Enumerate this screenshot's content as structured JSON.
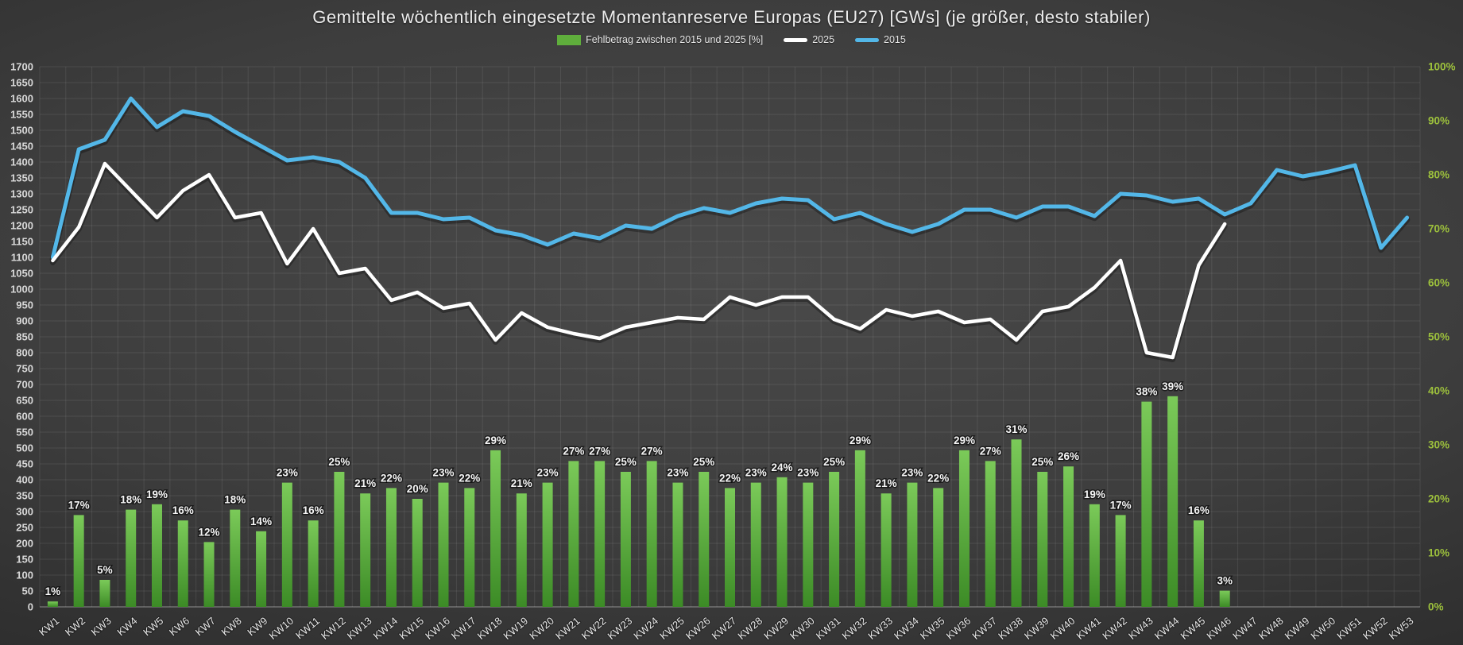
{
  "title": "Gemittelte wöchentlich eingesetzte Momentanreserve Europas (EU27) [GWs] (je größer, desto stabiler)",
  "legend": [
    {
      "label": "Fehlbetrag zwischen 2015 und 2025 [%]",
      "type": "bar",
      "color": "#5fae3c"
    },
    {
      "label": "2025",
      "type": "line",
      "color": "#ffffff"
    },
    {
      "label": "2015",
      "type": "line",
      "color": "#53b7e8"
    }
  ],
  "chart_data": {
    "type": "bar",
    "subtype": "combo-bar-line",
    "title": "Gemittelte wöchentlich eingesetzte Momentanreserve Europas (EU27) [GWs] (je größer, desto stabiler)",
    "grid": true,
    "legend_position": "top",
    "categories": [
      "KW1",
      "KW2",
      "KW3",
      "KW4",
      "KW5",
      "KW6",
      "KW7",
      "KW8",
      "KW9",
      "KW10",
      "KW11",
      "KW12",
      "KW13",
      "KW14",
      "KW15",
      "KW16",
      "KW17",
      "KW18",
      "KW19",
      "KW20",
      "KW21",
      "KW22",
      "KW23",
      "KW24",
      "KW25",
      "KW26",
      "KW27",
      "KW28",
      "KW29",
      "KW30",
      "KW31",
      "KW32",
      "KW33",
      "KW34",
      "KW35",
      "KW36",
      "KW37",
      "KW38",
      "KW39",
      "KW40",
      "KW41",
      "KW42",
      "KW43",
      "KW44",
      "KW45",
      "KW46",
      "KW47",
      "KW48",
      "KW49",
      "KW50",
      "KW51",
      "KW52",
      "KW53"
    ],
    "series": [
      {
        "name": "Fehlbetrag zwischen 2015 und 2025 [%]",
        "type": "bar",
        "axis": "right-percent",
        "color": "#5fae3c",
        "color_gradient": [
          "#7bca59",
          "#3c8b26"
        ],
        "label_format": "{v}%",
        "values": [
          1,
          17,
          5,
          18,
          19,
          16,
          12,
          18,
          14,
          23,
          16,
          25,
          21,
          22,
          20,
          23,
          22,
          29,
          21,
          23,
          27,
          27,
          25,
          27,
          23,
          25,
          22,
          23,
          24,
          23,
          25,
          29,
          21,
          23,
          22,
          29,
          27,
          31,
          25,
          26,
          19,
          17,
          38,
          39,
          16,
          3,
          null,
          null,
          null,
          null,
          null,
          null,
          null
        ]
      },
      {
        "name": "2025",
        "type": "line",
        "axis": "left-gw",
        "color": "#ffffff",
        "values": [
          1090,
          1195,
          1395,
          1310,
          1225,
          1310,
          1360,
          1225,
          1240,
          1080,
          1190,
          1050,
          1065,
          965,
          990,
          940,
          955,
          840,
          925,
          880,
          860,
          845,
          880,
          895,
          910,
          905,
          975,
          950,
          975,
          975,
          905,
          875,
          935,
          915,
          930,
          895,
          905,
          840,
          930,
          945,
          1005,
          1090,
          800,
          785,
          1075,
          1205,
          null,
          null,
          null,
          null,
          null,
          null,
          null
        ]
      },
      {
        "name": "2015",
        "type": "line",
        "axis": "left-gw",
        "color": "#53b7e8",
        "values": [
          1100,
          1440,
          1470,
          1600,
          1510,
          1560,
          1545,
          1495,
          1450,
          1405,
          1415,
          1400,
          1350,
          1240,
          1240,
          1220,
          1225,
          1185,
          1170,
          1140,
          1175,
          1160,
          1200,
          1190,
          1230,
          1255,
          1240,
          1270,
          1285,
          1280,
          1220,
          1240,
          1205,
          1180,
          1205,
          1250,
          1250,
          1225,
          1260,
          1260,
          1230,
          1300,
          1295,
          1275,
          1285,
          1235,
          1270,
          1375,
          1355,
          1370,
          1390,
          1130,
          1225
        ]
      }
    ],
    "left_axis": {
      "min": 0,
      "max": 1700,
      "step": 50,
      "color": "#d9d9d9",
      "ticks": [
        1700,
        1650,
        1600,
        1550,
        1500,
        1450,
        1400,
        1350,
        1300,
        1250,
        1200,
        1150,
        1100,
        1050,
        1000,
        950,
        900,
        850,
        800,
        750,
        700,
        650,
        600,
        550,
        500,
        450,
        400,
        350,
        300,
        250,
        200,
        150,
        100,
        50,
        0
      ]
    },
    "right_axis": {
      "min": 0,
      "max": 100,
      "step": 10,
      "color": "#9dc13c",
      "ticks": [
        "100%",
        "90%",
        "80%",
        "70%",
        "60%",
        "50%",
        "40%",
        "30%",
        "20%",
        "10%",
        "0%"
      ]
    }
  }
}
